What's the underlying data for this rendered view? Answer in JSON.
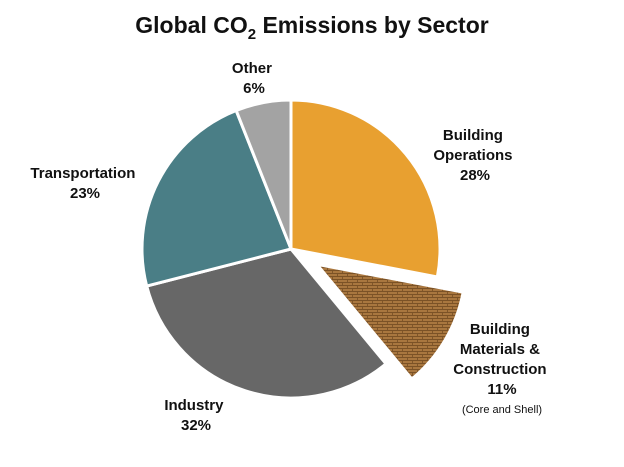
{
  "chart_data": {
    "type": "pie",
    "title": {
      "main": "Global CO",
      "subscript": "2",
      "rest": " Emissions by Sector"
    },
    "slices": [
      {
        "name": "Building Operations",
        "label_lines": [
          "Building",
          "Operations"
        ],
        "value": 28,
        "value_label": "28%",
        "color": "#E8A030",
        "exploded": false
      },
      {
        "name": "Building Materials & Construction",
        "label_lines": [
          "Building",
          "Materials &",
          "Construction"
        ],
        "value": 11,
        "value_label": "11%",
        "note": "(Core and Shell)",
        "color": "#A9773F",
        "pattern": "brick",
        "exploded": true
      },
      {
        "name": "Industry",
        "label_lines": [
          "Industry"
        ],
        "value": 32,
        "value_label": "32%",
        "color": "#676767",
        "exploded": false
      },
      {
        "name": "Transportation",
        "label_lines": [
          "Transportation"
        ],
        "value": 23,
        "value_label": "23%",
        "color": "#4A7E86",
        "exploded": false
      },
      {
        "name": "Other",
        "label_lines": [
          "Other"
        ],
        "value": 6,
        "value_label": "6%",
        "color": "#A3A3A3",
        "exploded": false
      }
    ]
  }
}
